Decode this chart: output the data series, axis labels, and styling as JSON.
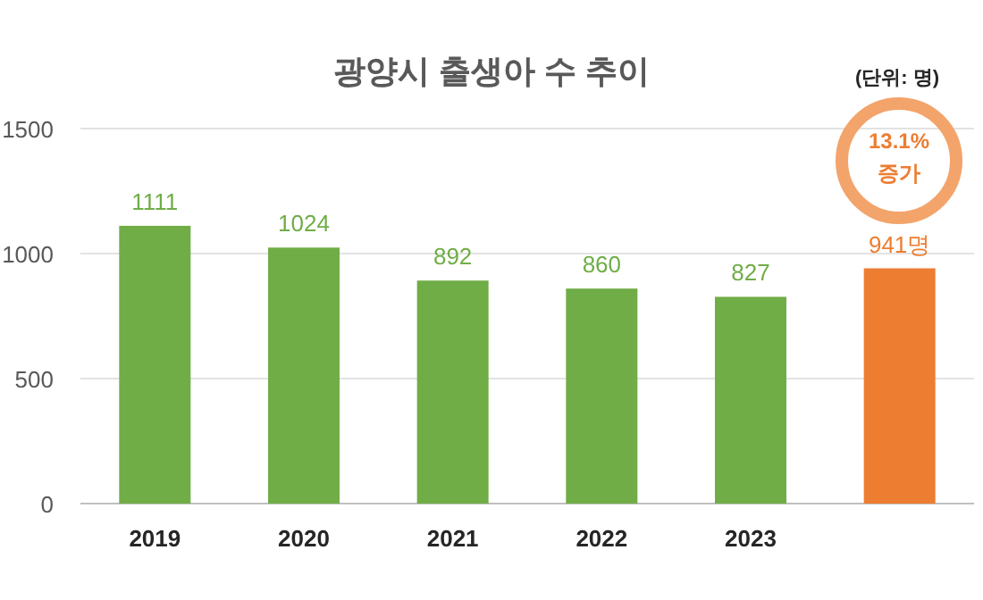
{
  "chart_data": {
    "type": "bar",
    "title": "광양시 출생아 수 추이",
    "categories": [
      "2019",
      "2020",
      "2021",
      "2022",
      "2023",
      null
    ],
    "values": [
      1111,
      1024,
      892,
      860,
      827,
      941
    ],
    "colors": [
      "#70ad47",
      "#70ad47",
      "#70ad47",
      "#70ad47",
      "#70ad47",
      "#ed7d31"
    ],
    "value_labels": [
      "1111",
      "1024",
      "892",
      "860",
      "827",
      "941명"
    ],
    "ylim": [
      0,
      1500
    ],
    "yticks": [
      0,
      500,
      1000,
      1500
    ],
    "grid": "y",
    "annotations": [
      "(단위: 명)",
      "13.1% 증가"
    ]
  }
}
